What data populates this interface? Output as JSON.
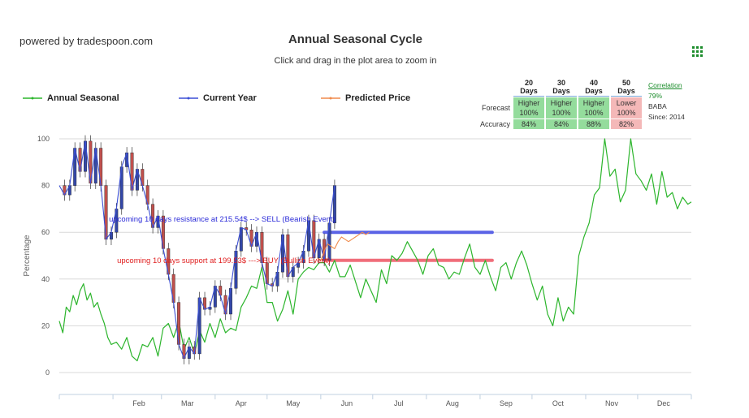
{
  "header": {
    "powered_by": "powered by tradespoon.com",
    "title": "Annual Seasonal Cycle",
    "subtitle": "Click and drag in the plot area to zoom in",
    "menu_icon": "grid-menu-icon"
  },
  "legend": {
    "items": [
      {
        "label": "Annual Seasonal",
        "color": "#2cb52c"
      },
      {
        "label": "Current Year",
        "color": "#3b4fd6"
      },
      {
        "label": "Predicted Price",
        "color": "#f08a4b"
      }
    ]
  },
  "stats": {
    "headers": [
      "20 Days",
      "30 Days",
      "40 Days",
      "50 Days"
    ],
    "forecast_label": "Forecast",
    "forecast": [
      {
        "dir": "Higher",
        "pct": "100%"
      },
      {
        "dir": "Higher",
        "pct": "100%"
      },
      {
        "dir": "Higher",
        "pct": "100%"
      },
      {
        "dir": "Lower",
        "pct": "100%"
      }
    ],
    "accuracy_label": "Accuracy",
    "accuracy": [
      "84%",
      "84%",
      "88%",
      "82%"
    ],
    "correlation_label": "Correlation",
    "correlation_value": "79%",
    "ticker": "BABA",
    "since": "Since: 2014"
  },
  "colors": {
    "seasonal": "#2cb52c",
    "current": "#3b4fd6",
    "predicted": "#f08a4b",
    "resistance": "#5b63e6",
    "support": "#f06d7a",
    "candle_up": "#3347a8",
    "candle_down": "#c0504d"
  },
  "chart_data": {
    "type": "line",
    "ylabel": "Percentage",
    "ylim": [
      0,
      100
    ],
    "yticks": [
      0,
      20,
      40,
      60,
      80,
      100
    ],
    "xlim": [
      0,
      365
    ],
    "xticks": [
      {
        "label": "Feb",
        "day": 31
      },
      {
        "label": "Mar",
        "day": 59
      },
      {
        "label": "Apr",
        "day": 90
      },
      {
        "label": "May",
        "day": 120
      },
      {
        "label": "Jun",
        "day": 151
      },
      {
        "label": "Jul",
        "day": 181
      },
      {
        "label": "Aug",
        "day": 212
      },
      {
        "label": "Sep",
        "day": 243
      },
      {
        "label": "Oct",
        "day": 273
      },
      {
        "label": "Nov",
        "day": 304
      },
      {
        "label": "Dec",
        "day": 334
      }
    ],
    "grid": true,
    "series": [
      {
        "name": "Annual Seasonal",
        "x": [
          0,
          2,
          4,
          6,
          8,
          10,
          12,
          14,
          16,
          18,
          20,
          22,
          24,
          26,
          28,
          30,
          33,
          36,
          39,
          42,
          45,
          48,
          51,
          54,
          57,
          60,
          63,
          66,
          69,
          72,
          75,
          78,
          81,
          84,
          87,
          90,
          93,
          96,
          99,
          102,
          105,
          108,
          111,
          114,
          117,
          120,
          123,
          126,
          129,
          132,
          135,
          138,
          141,
          144,
          147,
          150,
          153,
          156,
          159,
          162,
          165,
          168,
          171,
          174,
          177,
          180,
          183,
          186,
          189,
          192,
          195,
          198,
          201,
          204,
          207,
          210,
          213,
          216,
          219,
          222,
          225,
          228,
          231,
          234,
          237,
          240,
          243,
          246,
          249,
          252,
          255,
          258,
          261,
          264,
          267,
          270,
          273,
          276,
          279,
          282,
          285,
          288,
          291,
          294,
          297,
          300,
          303,
          306,
          309,
          312,
          315,
          318,
          321,
          324,
          327,
          330,
          333,
          336,
          339,
          342,
          345,
          348,
          351,
          354,
          357,
          360,
          363,
          365
        ],
        "y": [
          22,
          17,
          28,
          26,
          33,
          29,
          35,
          38,
          31,
          34,
          28,
          30,
          25,
          21,
          15,
          12,
          13,
          10,
          15,
          7,
          5,
          12,
          11,
          15,
          7,
          19,
          21,
          15,
          22,
          10,
          15,
          8,
          18,
          13,
          21,
          15,
          23,
          17,
          19,
          18,
          28,
          32,
          37,
          36,
          45,
          30,
          30,
          22,
          27,
          35,
          25,
          40,
          43,
          45,
          44,
          47,
          47,
          43,
          48,
          41,
          41,
          46,
          39,
          32,
          40,
          35,
          30,
          44,
          38,
          50,
          48,
          51,
          56,
          52,
          48,
          42,
          50,
          53,
          46,
          45,
          40,
          43,
          42,
          49,
          55,
          45,
          42,
          48,
          41,
          35,
          45,
          47,
          40,
          47,
          52,
          46,
          38,
          31,
          37,
          25,
          20,
          32,
          22,
          28,
          25,
          50,
          58,
          64,
          76,
          79,
          100,
          84,
          87,
          73,
          78,
          100,
          85,
          82,
          78,
          85,
          72,
          86,
          75,
          77,
          70,
          75,
          72,
          73
        ],
        "color": "#2cb52c"
      },
      {
        "name": "Current Year",
        "x": [
          0,
          3,
          6,
          9,
          12,
          15,
          18,
          21,
          24,
          27,
          30,
          33,
          36,
          39,
          42,
          45,
          48,
          51,
          54,
          57,
          60,
          63,
          66,
          69,
          72,
          75,
          78,
          81,
          84,
          87,
          90,
          93,
          96,
          99,
          102,
          105,
          108,
          111,
          114,
          117,
          120,
          123,
          126,
          129,
          132,
          135,
          138,
          141,
          144,
          147,
          150,
          153,
          156,
          159
        ],
        "y": [
          80,
          76,
          80,
          96,
          86,
          99,
          81,
          96,
          80,
          57,
          60,
          70,
          88,
          94,
          78,
          87,
          80,
          72,
          62,
          67,
          53,
          42,
          30,
          12,
          6,
          11,
          8,
          32,
          27,
          28,
          37,
          33,
          25,
          36,
          52,
          62,
          61,
          54,
          60,
          47,
          38,
          37,
          43,
          59,
          41,
          45,
          47,
          52,
          65,
          49,
          57,
          48,
          64,
          80
        ],
        "color": "#3b4fd6"
      },
      {
        "name": "Predicted Price",
        "x": [
          149,
          151,
          153,
          155,
          157,
          159,
          161,
          163,
          165,
          167,
          169,
          171,
          173,
          175,
          177,
          179
        ],
        "y": [
          49,
          48,
          52,
          55,
          54,
          53,
          56,
          58,
          57,
          56,
          57,
          58,
          59,
          60,
          59,
          60
        ],
        "color": "#f08a4b"
      }
    ],
    "levels": [
      {
        "label": "upcoming 10 days resistance at 215.54$ --> SELL (Bearish Event)",
        "y": 60,
        "x_start": 153,
        "x_end": 250,
        "color": "#5b63e6"
      },
      {
        "label": "upcoming 10 days support at 199.53$ ---> BUY (Bullish Event)",
        "y": 48,
        "x_start": 153,
        "x_end": 250,
        "color": "#f06d7a"
      }
    ]
  }
}
